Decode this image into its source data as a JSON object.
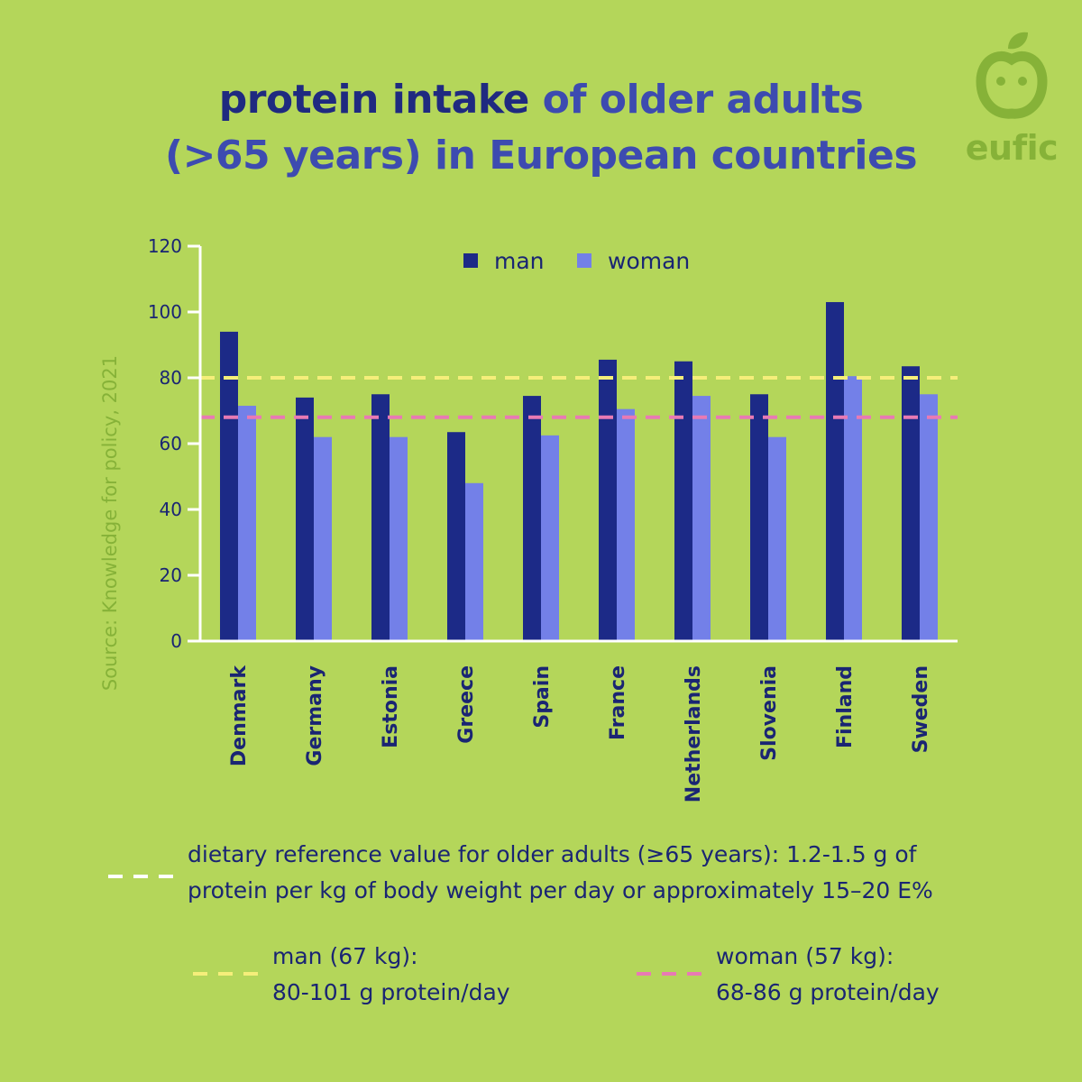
{
  "colors": {
    "background": "#b4d65a",
    "title_dark": "#1f2a80",
    "title_light": "#3d4bb0",
    "man": "#1c2a87",
    "woman": "#7380e8",
    "axis": "#ffffff",
    "text": "#1a2573",
    "logo": "#86b238",
    "man_reference": "#f5ee7a",
    "woman_reference": "#e87ab4",
    "reference_generic": "#ffffff"
  },
  "title": {
    "line1_bold": "protein intake",
    "line1_rest": " of older adults",
    "line2": "(>65 years) in European countries"
  },
  "logo": {
    "text": "eufic",
    "icon": "smiling-apple-icon"
  },
  "source": "Source: Knowledge for policy, 2021",
  "chart_data": {
    "type": "bar",
    "title": "protein intake of older adults (>65 years) in European countries",
    "xlabel": "",
    "ylabel": "",
    "categories": [
      "Denmark",
      "Germany",
      "Estonia",
      "Greece",
      "Spain",
      "France",
      "Netherlands",
      "Slovenia",
      "Finland",
      "Sweden"
    ],
    "series": [
      {
        "name": "man",
        "values": [
          94,
          74,
          75,
          63.5,
          74.5,
          85.5,
          85,
          75,
          103,
          83.5
        ]
      },
      {
        "name": "woman",
        "values": [
          71.5,
          62,
          62,
          48,
          62.5,
          70.5,
          74.5,
          62,
          80.5,
          75
        ]
      }
    ],
    "ylim": [
      0,
      120
    ],
    "yticks": [
      0,
      20,
      40,
      60,
      80,
      100,
      120
    ],
    "reference_lines": [
      {
        "label": "man (67 kg)",
        "value": 80
      },
      {
        "label": "woman (57 kg)",
        "value": 68
      }
    ],
    "legend_position": "top-center",
    "grid": false
  },
  "footnote": {
    "general_line1": "dietary reference value for older adults (≥65 years): 1.2-1.5 g of",
    "general_line2": "protein per kg of body weight per day or approximately 15–20 E%",
    "man_line1": "man (67 kg):",
    "man_line2": "80-101 g protein/day",
    "woman_line1": "woman (57 kg):",
    "woman_line2": "68-86 g protein/day"
  }
}
